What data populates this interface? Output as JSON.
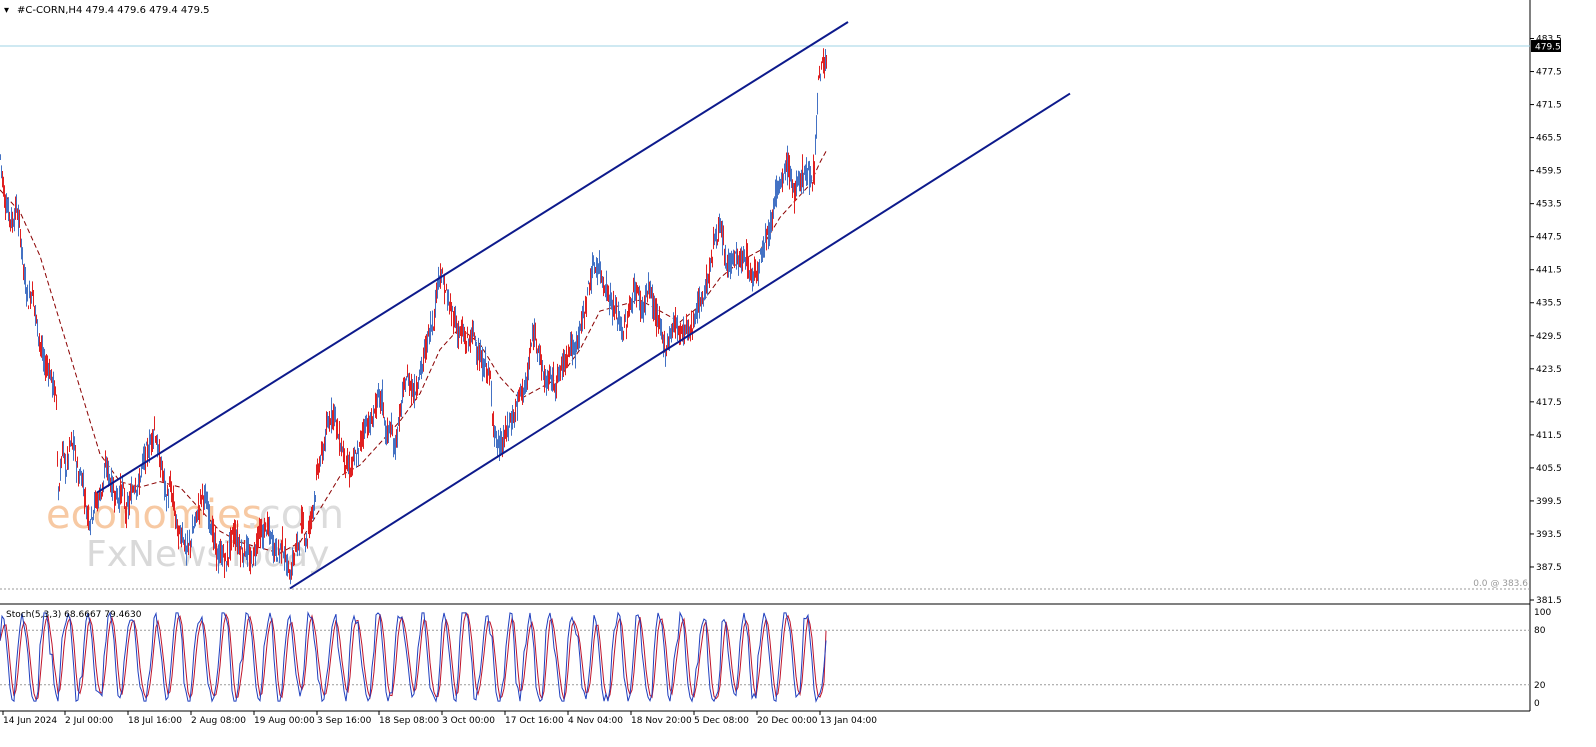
{
  "header": {
    "symbol_line": "#C-CORN,H4  479.4 479.6 479.4 479.5"
  },
  "price_tag": "479.5",
  "fib_label": "0.0 @ 383.6",
  "watermark": {
    "brand_main": "economies",
    "brand_domain": ".com",
    "brand_sub": "FxNewsToday"
  },
  "stoch": {
    "label": "Stoch(5,3,3) 68.6667 79.4630"
  },
  "colors": {
    "bull": "#4472c4",
    "bear": "#e02020",
    "ma": "#8b0000",
    "channel": "#0d1a8c",
    "stoch_main": "#1f3fbf",
    "stoch_signal": "#c0142a",
    "price_line": "#9fd3e6"
  },
  "chart_data": {
    "type": "line",
    "title": "",
    "price_axis": {
      "ylim": [
        381.5,
        486.5
      ],
      "ticks": [
        "483.5",
        "477.5",
        "471.5",
        "465.5",
        "459.5",
        "453.5",
        "447.5",
        "441.5",
        "435.5",
        "429.5",
        "423.5",
        "417.5",
        "411.5",
        "405.5",
        "399.5",
        "393.5",
        "387.5",
        "381.5"
      ]
    },
    "time_axis_labels": [
      "14 Jun 2024",
      "2 Jul 00:00",
      "18 Jul 16:00",
      "2 Aug 08:00",
      "19 Aug 00:00",
      "3 Sep 16:00",
      "18 Sep 08:00",
      "3 Oct 00:00",
      "17 Oct 16:00",
      "4 Nov 04:00",
      "18 Nov 20:00",
      "5 Dec 08:00",
      "20 Dec 00:00",
      "13 Jan 04:00"
    ],
    "series": [
      {
        "kind": "price",
        "points": [
          [
            0,
            462
          ],
          [
            4,
            455
          ],
          [
            8,
            452
          ],
          [
            12,
            450
          ],
          [
            16,
            453
          ],
          [
            20,
            448
          ],
          [
            24,
            440
          ],
          [
            28,
            436
          ],
          [
            32,
            438
          ],
          [
            36,
            432
          ],
          [
            40,
            428
          ],
          [
            44,
            424
          ],
          [
            48,
            424
          ],
          [
            52,
            421
          ],
          [
            56,
            418
          ],
          [
            58,
            400
          ],
          [
            62,
            409
          ],
          [
            66,
            405
          ],
          [
            70,
            410
          ],
          [
            74,
            409
          ],
          [
            78,
            404
          ],
          [
            82,
            404
          ],
          [
            86,
            398
          ],
          [
            90,
            396
          ],
          [
            94,
            399
          ],
          [
            98,
            400
          ],
          [
            102,
            402
          ],
          [
            106,
            406
          ],
          [
            110,
            403
          ],
          [
            114,
            401
          ],
          [
            118,
            400
          ],
          [
            122,
            402
          ],
          [
            126,
            397
          ],
          [
            130,
            400
          ],
          [
            134,
            403
          ],
          [
            138,
            402
          ],
          [
            142,
            406
          ],
          [
            146,
            408
          ],
          [
            150,
            410
          ],
          [
            154,
            413
          ],
          [
            158,
            408
          ],
          [
            162,
            405
          ],
          [
            166,
            400
          ],
          [
            170,
            402
          ],
          [
            174,
            398
          ],
          [
            178,
            393
          ],
          [
            182,
            394
          ],
          [
            186,
            390
          ],
          [
            190,
            392
          ],
          [
            194,
            395
          ],
          [
            198,
            398
          ],
          [
            202,
            401
          ],
          [
            206,
            399
          ],
          [
            210,
            396
          ],
          [
            214,
            392
          ],
          [
            218,
            389
          ],
          [
            222,
            390
          ],
          [
            226,
            388
          ],
          [
            230,
            392
          ],
          [
            234,
            394
          ],
          [
            238,
            392
          ],
          [
            242,
            390
          ],
          [
            246,
            391
          ],
          [
            250,
            388
          ],
          [
            254,
            390
          ],
          [
            258,
            394
          ],
          [
            262,
            393
          ],
          [
            266,
            395
          ],
          [
            270,
            393
          ],
          [
            274,
            391
          ],
          [
            278,
            390
          ],
          [
            282,
            392
          ],
          [
            286,
            388
          ],
          [
            290,
            386
          ],
          [
            294,
            390
          ],
          [
            298,
            392
          ],
          [
            302,
            396
          ],
          [
            306,
            392
          ],
          [
            310,
            396
          ],
          [
            314,
            400
          ],
          [
            318,
            406
          ],
          [
            322,
            408
          ],
          [
            326,
            412
          ],
          [
            330,
            415
          ],
          [
            334,
            416
          ],
          [
            338,
            411
          ],
          [
            342,
            409
          ],
          [
            346,
            406
          ],
          [
            350,
            405
          ],
          [
            354,
            407
          ],
          [
            358,
            408
          ],
          [
            362,
            412
          ],
          [
            366,
            414
          ],
          [
            370,
            413
          ],
          [
            374,
            416
          ],
          [
            378,
            418
          ],
          [
            382,
            418
          ],
          [
            386,
            411
          ],
          [
            390,
            413
          ],
          [
            394,
            409
          ],
          [
            398,
            413
          ],
          [
            402,
            418
          ],
          [
            406,
            422
          ],
          [
            410,
            421
          ],
          [
            414,
            419
          ],
          [
            418,
            422
          ],
          [
            422,
            424
          ],
          [
            426,
            428
          ],
          [
            430,
            431
          ],
          [
            434,
            433
          ],
          [
            438,
            441
          ],
          [
            442,
            440
          ],
          [
            446,
            437
          ],
          [
            450,
            434
          ],
          [
            454,
            433
          ],
          [
            458,
            430
          ],
          [
            462,
            430
          ],
          [
            466,
            428
          ],
          [
            470,
            429
          ],
          [
            474,
            430
          ],
          [
            478,
            426
          ],
          [
            482,
            424
          ],
          [
            486,
            424
          ],
          [
            490,
            421
          ],
          [
            494,
            412
          ],
          [
            498,
            409
          ],
          [
            502,
            410
          ],
          [
            506,
            412
          ],
          [
            510,
            414
          ],
          [
            514,
            415
          ],
          [
            518,
            418
          ],
          [
            522,
            420
          ],
          [
            526,
            420
          ],
          [
            530,
            427
          ],
          [
            534,
            430
          ],
          [
            538,
            428
          ],
          [
            542,
            423
          ],
          [
            546,
            421
          ],
          [
            550,
            422
          ],
          [
            554,
            421
          ],
          [
            558,
            422
          ],
          [
            562,
            424
          ],
          [
            566,
            426
          ],
          [
            570,
            428
          ],
          [
            574,
            426
          ],
          [
            578,
            430
          ],
          [
            582,
            432
          ],
          [
            586,
            436
          ],
          [
            590,
            440
          ],
          [
            594,
            442
          ],
          [
            598,
            442
          ],
          [
            602,
            440
          ],
          [
            606,
            438
          ],
          [
            610,
            436
          ],
          [
            614,
            434
          ],
          [
            618,
            433
          ],
          [
            622,
            430
          ],
          [
            626,
            432
          ],
          [
            630,
            435
          ],
          [
            634,
            438
          ],
          [
            638,
            437
          ],
          [
            642,
            434
          ],
          [
            646,
            437
          ],
          [
            650,
            438
          ],
          [
            654,
            434
          ],
          [
            658,
            432
          ],
          [
            662,
            429
          ],
          [
            666,
            427
          ],
          [
            670,
            430
          ],
          [
            674,
            432
          ],
          [
            678,
            431
          ],
          [
            682,
            430
          ],
          [
            686,
            431
          ],
          [
            690,
            430
          ],
          [
            694,
            433
          ],
          [
            698,
            435
          ],
          [
            702,
            436
          ],
          [
            706,
            439
          ],
          [
            710,
            442
          ],
          [
            714,
            447
          ],
          [
            718,
            449
          ],
          [
            722,
            447
          ],
          [
            726,
            442
          ],
          [
            730,
            443
          ],
          [
            734,
            444
          ],
          [
            738,
            443
          ],
          [
            742,
            443
          ],
          [
            746,
            444
          ],
          [
            750,
            440
          ],
          [
            754,
            441
          ],
          [
            758,
            442
          ],
          [
            762,
            446
          ],
          [
            766,
            448
          ],
          [
            770,
            449
          ],
          [
            774,
            455
          ],
          [
            778,
            456
          ],
          [
            782,
            457
          ],
          [
            786,
            461
          ],
          [
            790,
            459
          ],
          [
            794,
            455
          ],
          [
            798,
            457
          ],
          [
            802,
            459
          ],
          [
            806,
            459
          ],
          [
            810,
            458
          ],
          [
            814,
            460
          ],
          [
            818,
            476
          ],
          [
            822,
            479
          ],
          [
            826,
            479.5
          ]
        ]
      },
      {
        "kind": "moving_average",
        "style": "dashed",
        "points": [
          [
            0,
            456
          ],
          [
            20,
            452
          ],
          [
            40,
            444
          ],
          [
            60,
            432
          ],
          [
            80,
            420
          ],
          [
            100,
            408
          ],
          [
            120,
            403
          ],
          [
            140,
            402
          ],
          [
            160,
            403
          ],
          [
            180,
            402
          ],
          [
            200,
            398
          ],
          [
            220,
            394
          ],
          [
            240,
            392
          ],
          [
            260,
            391
          ],
          [
            280,
            390
          ],
          [
            300,
            392
          ],
          [
            320,
            398
          ],
          [
            340,
            404
          ],
          [
            360,
            406
          ],
          [
            380,
            410
          ],
          [
            400,
            414
          ],
          [
            420,
            419
          ],
          [
            440,
            427
          ],
          [
            460,
            431
          ],
          [
            480,
            428
          ],
          [
            500,
            422
          ],
          [
            520,
            418
          ],
          [
            540,
            420
          ],
          [
            560,
            422
          ],
          [
            580,
            427
          ],
          [
            600,
            434
          ],
          [
            620,
            435
          ],
          [
            640,
            436
          ],
          [
            660,
            434
          ],
          [
            680,
            432
          ],
          [
            700,
            435
          ],
          [
            720,
            440
          ],
          [
            740,
            443
          ],
          [
            760,
            445
          ],
          [
            780,
            451
          ],
          [
            800,
            455
          ],
          [
            810,
            457
          ],
          [
            820,
            461
          ],
          [
            826,
            463
          ]
        ]
      }
    ],
    "channel_lines": [
      [
        [
          "2 Jul 00:00",
          401.0
        ],
        [
          "13 Jan 04:00 +",
          486.5
        ]
      ],
      [
        [
          "19 Aug 00:00",
          383.6
        ],
        [
          "beyond 13 Jan",
          473.5
        ]
      ]
    ],
    "stochastic": {
      "name": "Stoch(5,3,3)",
      "main_last": 68.6667,
      "signal_last": 79.463,
      "ylim": [
        0,
        100
      ],
      "ticks": [
        "100",
        "80",
        "20",
        "0"
      ],
      "levels": [
        80,
        20
      ]
    }
  }
}
